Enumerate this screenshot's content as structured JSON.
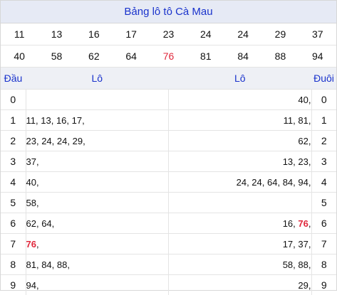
{
  "title": "Bảng lô tô Cà Mau",
  "numbers_row1": [
    {
      "v": "11",
      "hl": false
    },
    {
      "v": "13",
      "hl": false
    },
    {
      "v": "16",
      "hl": false
    },
    {
      "v": "17",
      "hl": false
    },
    {
      "v": "23",
      "hl": false
    },
    {
      "v": "24",
      "hl": false
    },
    {
      "v": "24",
      "hl": false
    },
    {
      "v": "29",
      "hl": false
    },
    {
      "v": "37",
      "hl": false
    }
  ],
  "numbers_row2": [
    {
      "v": "40",
      "hl": false
    },
    {
      "v": "58",
      "hl": false
    },
    {
      "v": "62",
      "hl": false
    },
    {
      "v": "64",
      "hl": false
    },
    {
      "v": "76",
      "hl": true
    },
    {
      "v": "81",
      "hl": false
    },
    {
      "v": "84",
      "hl": false
    },
    {
      "v": "88",
      "hl": false
    },
    {
      "v": "94",
      "hl": false
    }
  ],
  "headers": {
    "dau": "Đầu",
    "lo_left": "Lô",
    "lo_right": "Lô",
    "duoi": "Đuôi"
  },
  "rows": [
    {
      "dau": "0",
      "left": [],
      "right": [
        {
          "v": "40",
          "hot": false
        }
      ],
      "duoi": "0"
    },
    {
      "dau": "1",
      "left": [
        {
          "v": "11",
          "hot": false
        },
        {
          "v": "13",
          "hot": false
        },
        {
          "v": "16",
          "hot": false
        },
        {
          "v": "17",
          "hot": false
        }
      ],
      "right": [
        {
          "v": "11",
          "hot": false
        },
        {
          "v": "81",
          "hot": false
        }
      ],
      "duoi": "1"
    },
    {
      "dau": "2",
      "left": [
        {
          "v": "23",
          "hot": false
        },
        {
          "v": "24",
          "hot": false
        },
        {
          "v": "24",
          "hot": false
        },
        {
          "v": "29",
          "hot": false
        }
      ],
      "right": [
        {
          "v": "62",
          "hot": false
        }
      ],
      "duoi": "2"
    },
    {
      "dau": "3",
      "left": [
        {
          "v": "37",
          "hot": false
        }
      ],
      "right": [
        {
          "v": "13",
          "hot": false
        },
        {
          "v": "23",
          "hot": false
        }
      ],
      "duoi": "3"
    },
    {
      "dau": "4",
      "left": [
        {
          "v": "40",
          "hot": false
        }
      ],
      "right": [
        {
          "v": "24",
          "hot": false
        },
        {
          "v": "24",
          "hot": false
        },
        {
          "v": "64",
          "hot": false
        },
        {
          "v": "84",
          "hot": false
        },
        {
          "v": "94",
          "hot": false
        }
      ],
      "duoi": "4"
    },
    {
      "dau": "5",
      "left": [
        {
          "v": "58",
          "hot": false
        }
      ],
      "right": [],
      "duoi": "5"
    },
    {
      "dau": "6",
      "left": [
        {
          "v": "62",
          "hot": false
        },
        {
          "v": "64",
          "hot": false
        }
      ],
      "right": [
        {
          "v": "16",
          "hot": false
        },
        {
          "v": "76",
          "hot": true
        }
      ],
      "duoi": "6"
    },
    {
      "dau": "7",
      "left": [
        {
          "v": "76",
          "hot": true
        }
      ],
      "right": [
        {
          "v": "17",
          "hot": false
        },
        {
          "v": "37",
          "hot": false
        }
      ],
      "duoi": "7"
    },
    {
      "dau": "8",
      "left": [
        {
          "v": "81",
          "hot": false
        },
        {
          "v": "84",
          "hot": false
        },
        {
          "v": "88",
          "hot": false
        }
      ],
      "right": [
        {
          "v": "58",
          "hot": false
        },
        {
          "v": "88",
          "hot": false
        }
      ],
      "duoi": "8"
    },
    {
      "dau": "9",
      "left": [
        {
          "v": "94",
          "hot": false
        }
      ],
      "right": [
        {
          "v": "29",
          "hot": false
        }
      ],
      "duoi": "9"
    }
  ]
}
